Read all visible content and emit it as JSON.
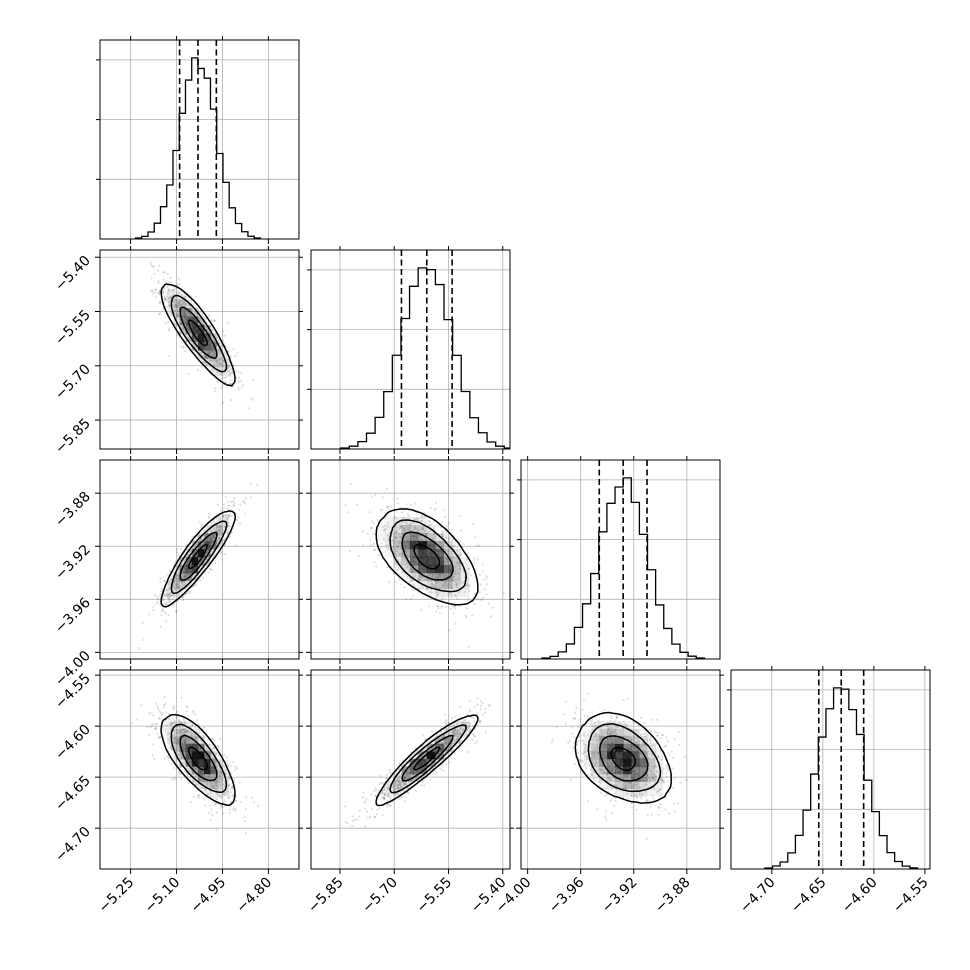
{
  "chart_data": {
    "type": "corner",
    "grid": true,
    "parameters": [
      {
        "index": 0,
        "mean": -5.03,
        "sd": 0.06,
        "range": [
          -5.35,
          -4.7
        ],
        "ticks": [
          -5.25,
          -5.1,
          -4.95,
          -4.8
        ],
        "tick_labels": [
          "−5.25",
          "−5.10",
          "−4.95",
          "−4.80"
        ],
        "quantiles": [
          -5.09,
          -5.03,
          -4.97
        ]
      },
      {
        "index": 1,
        "mean": -5.61,
        "sd": 0.07,
        "range": [
          -5.93,
          -5.38
        ],
        "ticks": [
          -5.85,
          -5.7,
          -5.55,
          -5.4
        ],
        "tick_labels": [
          "−5.85",
          "−5.70",
          "−5.55",
          "−5.40"
        ],
        "quantiles": [
          -5.68,
          -5.61,
          -5.54
        ]
      },
      {
        "index": 2,
        "mean": -3.928,
        "sd": 0.018,
        "range": [
          -4.005,
          -3.855
        ],
        "ticks": [
          -4.0,
          -3.96,
          -3.92,
          -3.88
        ],
        "tick_labels": [
          "−4.00",
          "−3.96",
          "−3.92",
          "−3.88"
        ],
        "quantiles": [
          -3.946,
          -3.928,
          -3.91
        ]
      },
      {
        "index": 3,
        "mean": -4.632,
        "sd": 0.022,
        "range": [
          -4.74,
          -4.545
        ],
        "ticks": [
          -4.7,
          -4.65,
          -4.6,
          -4.55
        ],
        "tick_labels": [
          "−4.70",
          "−4.65",
          "−4.60",
          "−4.55"
        ],
        "quantiles": [
          -4.654,
          -4.632,
          -4.61
        ]
      }
    ],
    "correlations": [
      {
        "i": 1,
        "j": 0,
        "r": -0.85
      },
      {
        "i": 2,
        "j": 0,
        "r": 0.88
      },
      {
        "i": 2,
        "j": 1,
        "r": -0.55
      },
      {
        "i": 3,
        "j": 0,
        "r": -0.72
      },
      {
        "i": 3,
        "j": 1,
        "r": 0.92
      },
      {
        "i": 3,
        "j": 2,
        "r": -0.35
      }
    ],
    "histogram_bins": 20,
    "contour_levels_sigma": [
      0.5,
      1.0,
      1.5,
      2.0
    ]
  }
}
